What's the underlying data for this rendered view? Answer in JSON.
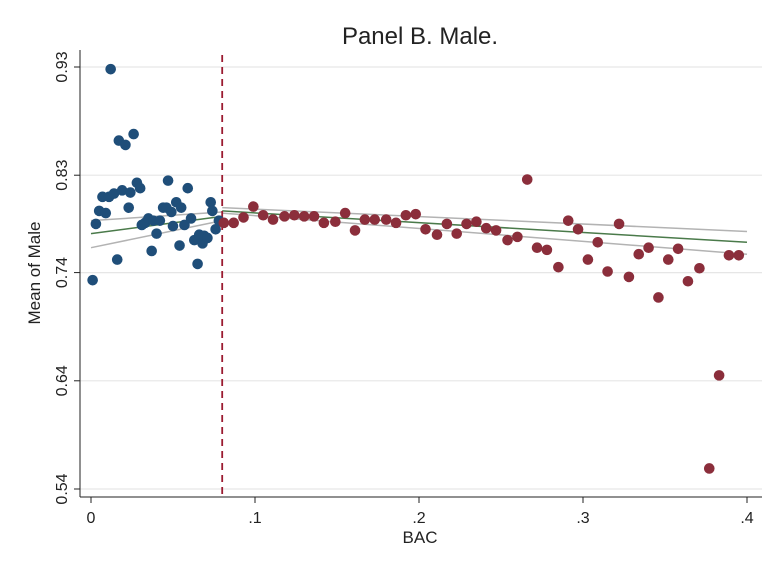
{
  "chart_data": {
    "type": "scatter",
    "title": "Panel B. Male.",
    "xlabel": "BAC",
    "ylabel": "Mean of Male",
    "xlim": [
      0,
      0.4
    ],
    "ylim": [
      0.54,
      0.93
    ],
    "x_ticks": [
      {
        "value": 0,
        "label": "0"
      },
      {
        "value": 0.1,
        "label": ".1"
      },
      {
        "value": 0.2,
        "label": ".2"
      },
      {
        "value": 0.3,
        "label": ".3"
      },
      {
        "value": 0.4,
        "label": ".4"
      }
    ],
    "y_ticks": [
      {
        "value": 0.54,
        "label": "0.54"
      },
      {
        "value": 0.64,
        "label": "0.64"
      },
      {
        "value": 0.74,
        "label": "0.74"
      },
      {
        "value": 0.83,
        "label": "0.83"
      },
      {
        "value": 0.93,
        "label": "0.93"
      }
    ],
    "grid": true,
    "cutoff": {
      "x": 0.08,
      "color": "#9b1b30",
      "style": "dashed"
    },
    "colors": {
      "below_cutoff": "#1f4e79",
      "above_cutoff": "#8b2e3b",
      "fit_line": "#4a7a4a",
      "ci_band": "#b3b3b3",
      "grid": "#e6e6e6"
    },
    "series": [
      {
        "points": [
          [
            0.001,
            0.733
          ],
          [
            0.003,
            0.785
          ],
          [
            0.005,
            0.797
          ],
          [
            0.007,
            0.81
          ],
          [
            0.009,
            0.795
          ],
          [
            0.011,
            0.81
          ],
          [
            0.012,
            0.928
          ],
          [
            0.014,
            0.813
          ],
          [
            0.016,
            0.752
          ],
          [
            0.017,
            0.862
          ],
          [
            0.019,
            0.816
          ],
          [
            0.021,
            0.858
          ],
          [
            0.023,
            0.8
          ],
          [
            0.024,
            0.814
          ],
          [
            0.026,
            0.868
          ],
          [
            0.028,
            0.823
          ],
          [
            0.03,
            0.818
          ],
          [
            0.031,
            0.784
          ],
          [
            0.033,
            0.786
          ],
          [
            0.035,
            0.79
          ],
          [
            0.037,
            0.76
          ],
          [
            0.038,
            0.788
          ],
          [
            0.04,
            0.776
          ],
          [
            0.042,
            0.788
          ],
          [
            0.044,
            0.8
          ],
          [
            0.046,
            0.8
          ],
          [
            0.047,
            0.825
          ],
          [
            0.049,
            0.796
          ],
          [
            0.05,
            0.783
          ],
          [
            0.052,
            0.805
          ],
          [
            0.054,
            0.765
          ],
          [
            0.055,
            0.8
          ],
          [
            0.057,
            0.784
          ],
          [
            0.059,
            0.818
          ],
          [
            0.061,
            0.79
          ],
          [
            0.063,
            0.77
          ],
          [
            0.065,
            0.748
          ],
          [
            0.066,
            0.775
          ],
          [
            0.068,
            0.767
          ],
          [
            0.069,
            0.774
          ],
          [
            0.071,
            0.772
          ],
          [
            0.073,
            0.805
          ],
          [
            0.074,
            0.797
          ],
          [
            0.076,
            0.78
          ],
          [
            0.078,
            0.788
          ]
        ]
      },
      {
        "points": [
          [
            0.081,
            0.786
          ],
          [
            0.087,
            0.786
          ],
          [
            0.093,
            0.791
          ],
          [
            0.099,
            0.801
          ],
          [
            0.105,
            0.793
          ],
          [
            0.111,
            0.789
          ],
          [
            0.118,
            0.792
          ],
          [
            0.124,
            0.793
          ],
          [
            0.13,
            0.792
          ],
          [
            0.136,
            0.792
          ],
          [
            0.142,
            0.786
          ],
          [
            0.149,
            0.787
          ],
          [
            0.155,
            0.795
          ],
          [
            0.161,
            0.779
          ],
          [
            0.167,
            0.789
          ],
          [
            0.173,
            0.789
          ],
          [
            0.18,
            0.789
          ],
          [
            0.186,
            0.786
          ],
          [
            0.192,
            0.793
          ],
          [
            0.198,
            0.794
          ],
          [
            0.204,
            0.78
          ],
          [
            0.211,
            0.775
          ],
          [
            0.217,
            0.785
          ],
          [
            0.223,
            0.776
          ],
          [
            0.229,
            0.785
          ],
          [
            0.235,
            0.787
          ],
          [
            0.241,
            0.781
          ],
          [
            0.247,
            0.779
          ],
          [
            0.254,
            0.77
          ],
          [
            0.26,
            0.773
          ],
          [
            0.266,
            0.826
          ],
          [
            0.272,
            0.763
          ],
          [
            0.278,
            0.761
          ],
          [
            0.285,
            0.745
          ],
          [
            0.291,
            0.788
          ],
          [
            0.297,
            0.78
          ],
          [
            0.303,
            0.752
          ],
          [
            0.309,
            0.768
          ],
          [
            0.315,
            0.741
          ],
          [
            0.322,
            0.785
          ],
          [
            0.328,
            0.736
          ],
          [
            0.334,
            0.757
          ],
          [
            0.34,
            0.763
          ],
          [
            0.346,
            0.717
          ],
          [
            0.352,
            0.752
          ],
          [
            0.358,
            0.762
          ],
          [
            0.364,
            0.732
          ],
          [
            0.371,
            0.744
          ],
          [
            0.377,
            0.559
          ],
          [
            0.383,
            0.645
          ],
          [
            0.389,
            0.756
          ],
          [
            0.395,
            0.756
          ]
        ]
      }
    ],
    "fit": {
      "left": {
        "x": [
          0,
          0.08
        ],
        "fit": [
          0.776,
          0.792
        ],
        "lower": [
          0.763,
          0.788
        ],
        "upper": [
          0.788,
          0.796
        ]
      },
      "right": {
        "x": [
          0.08,
          0.4
        ],
        "fit": [
          0.797,
          0.768
        ],
        "lower": [
          0.795,
          0.757
        ],
        "upper": [
          0.8,
          0.778
        ]
      }
    }
  }
}
